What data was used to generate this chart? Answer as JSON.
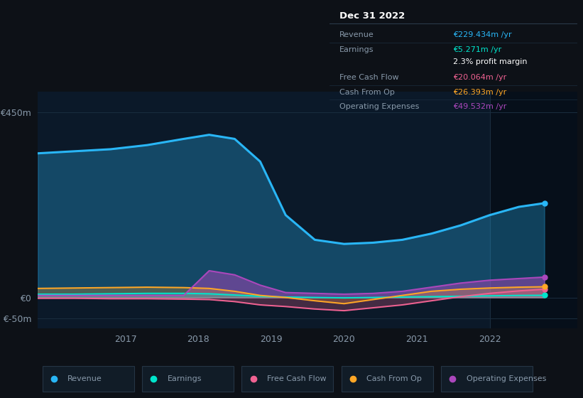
{
  "bg_color": "#0d1117",
  "chart_bg": "#0b1929",
  "grid_color": "#1a2d3f",
  "text_color": "#8899aa",
  "title_color": "#ffffff",
  "years": [
    2015.8,
    2016.3,
    2016.8,
    2017.3,
    2017.8,
    2018.15,
    2018.5,
    2018.85,
    2019.2,
    2019.6,
    2020.0,
    2020.4,
    2020.8,
    2021.2,
    2021.6,
    2022.0,
    2022.4,
    2022.75
  ],
  "revenue": [
    350,
    355,
    360,
    370,
    385,
    395,
    385,
    330,
    200,
    140,
    130,
    133,
    140,
    155,
    175,
    200,
    220,
    229
  ],
  "earnings": [
    8,
    8,
    9,
    10,
    10,
    9,
    6,
    3,
    1,
    0,
    -1,
    0,
    1,
    2,
    3,
    4,
    5,
    5.3
  ],
  "fcf": [
    -2,
    -2,
    -3,
    -3,
    -4,
    -5,
    -10,
    -18,
    -22,
    -28,
    -32,
    -25,
    -18,
    -8,
    2,
    10,
    16,
    20
  ],
  "cashfromop": [
    22,
    23,
    24,
    25,
    24,
    22,
    15,
    5,
    0,
    -8,
    -15,
    -5,
    5,
    15,
    20,
    23,
    25,
    26
  ],
  "opex": [
    5,
    5,
    5,
    5,
    5,
    65,
    55,
    30,
    12,
    10,
    8,
    10,
    15,
    25,
    35,
    42,
    46,
    49.5
  ],
  "revenue_color": "#29b6f6",
  "earnings_color": "#00e5cc",
  "fcf_color": "#f06292",
  "cashfromop_color": "#ffa726",
  "opex_color": "#ab47bc",
  "ylim_min": -75,
  "ylim_max": 500,
  "yticks": [
    -50,
    0,
    450
  ],
  "ytick_labels": [
    "€-50m",
    "€0",
    "€450m"
  ],
  "xticks": [
    2017,
    2018,
    2019,
    2020,
    2021,
    2022
  ],
  "xlim_min": 2015.8,
  "xlim_max": 2023.2,
  "shade_x_start": 2022.0,
  "shade_x_end": 2023.2,
  "info_box": {
    "title": "Dec 31 2022",
    "rows": [
      {
        "label": "Revenue",
        "value": "€229.434m /yr",
        "value_color": "#29b6f6"
      },
      {
        "label": "Earnings",
        "value": "€5.271m /yr",
        "value_color": "#00e5cc"
      },
      {
        "label": "",
        "value": "2.3% profit margin",
        "value_color": "#ffffff"
      },
      {
        "label": "Free Cash Flow",
        "value": "€20.064m /yr",
        "value_color": "#f06292"
      },
      {
        "label": "Cash From Op",
        "value": "€26.393m /yr",
        "value_color": "#ffa726"
      },
      {
        "label": "Operating Expenses",
        "value": "€49.532m /yr",
        "value_color": "#ab47bc"
      }
    ]
  },
  "legend_items": [
    {
      "label": "Revenue",
      "color": "#29b6f6"
    },
    {
      "label": "Earnings",
      "color": "#00e5cc"
    },
    {
      "label": "Free Cash Flow",
      "color": "#f06292"
    },
    {
      "label": "Cash From Op",
      "color": "#ffa726"
    },
    {
      "label": "Operating Expenses",
      "color": "#ab47bc"
    }
  ]
}
